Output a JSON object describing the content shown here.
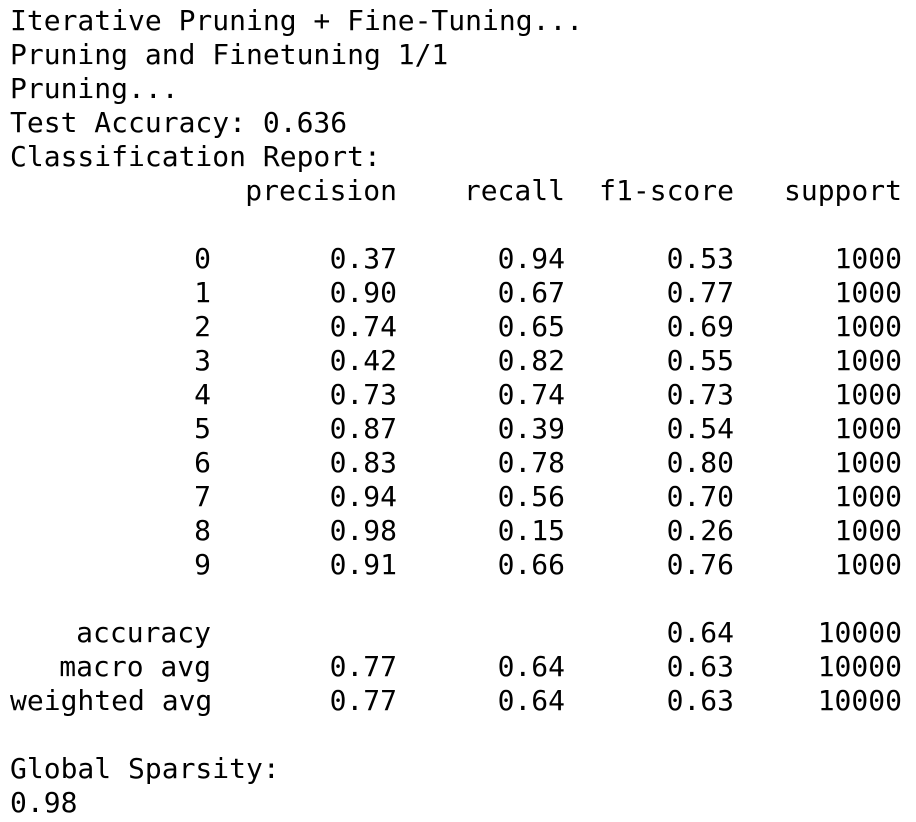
{
  "log": {
    "line1": "Iterative Pruning + Fine-Tuning...",
    "line2": "Pruning and Finetuning 1/1",
    "line3": "Pruning...",
    "test_accuracy": "Test Accuracy: 0.636",
    "report_title": "Classification Report:"
  },
  "report": {
    "headers": {
      "precision": "precision",
      "recall": "recall",
      "f1": "f1-score",
      "support": "support"
    },
    "classes": [
      {
        "label": "0",
        "precision": "0.37",
        "recall": "0.94",
        "f1": "0.53",
        "support": "1000"
      },
      {
        "label": "1",
        "precision": "0.90",
        "recall": "0.67",
        "f1": "0.77",
        "support": "1000"
      },
      {
        "label": "2",
        "precision": "0.74",
        "recall": "0.65",
        "f1": "0.69",
        "support": "1000"
      },
      {
        "label": "3",
        "precision": "0.42",
        "recall": "0.82",
        "f1": "0.55",
        "support": "1000"
      },
      {
        "label": "4",
        "precision": "0.73",
        "recall": "0.74",
        "f1": "0.73",
        "support": "1000"
      },
      {
        "label": "5",
        "precision": "0.87",
        "recall": "0.39",
        "f1": "0.54",
        "support": "1000"
      },
      {
        "label": "6",
        "precision": "0.83",
        "recall": "0.78",
        "f1": "0.80",
        "support": "1000"
      },
      {
        "label": "7",
        "precision": "0.94",
        "recall": "0.56",
        "f1": "0.70",
        "support": "1000"
      },
      {
        "label": "8",
        "precision": "0.98",
        "recall": "0.15",
        "f1": "0.26",
        "support": "1000"
      },
      {
        "label": "9",
        "precision": "0.91",
        "recall": "0.66",
        "f1": "0.76",
        "support": "1000"
      }
    ],
    "summary": [
      {
        "label": "accuracy",
        "precision": "",
        "recall": "",
        "f1": "0.64",
        "support": "10000"
      },
      {
        "label": "macro avg",
        "precision": "0.77",
        "recall": "0.64",
        "f1": "0.63",
        "support": "10000"
      },
      {
        "label": "weighted avg",
        "precision": "0.77",
        "recall": "0.64",
        "f1": "0.63",
        "support": "10000"
      }
    ]
  },
  "sparsity": {
    "label": "Global Sparsity:",
    "value": "0.98"
  },
  "colors": {
    "background": "#ffffff",
    "text": "#000000"
  }
}
